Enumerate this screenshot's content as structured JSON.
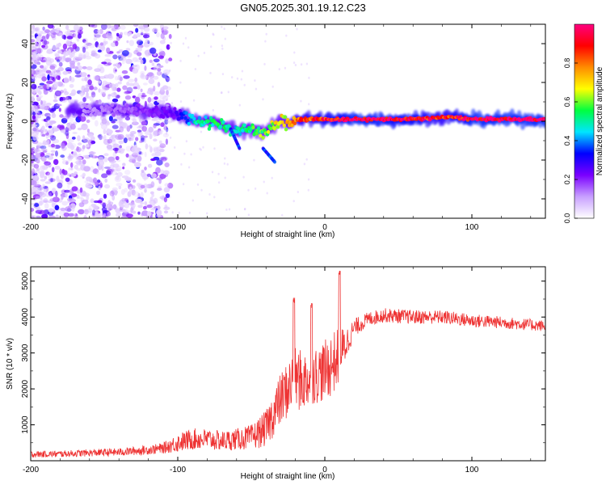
{
  "title": "GN05.2025.301.19.12.C23",
  "colors": {
    "signal": "#ee3333",
    "axis": "#000000",
    "background": "#ffffff"
  },
  "chart_data": [
    {
      "type": "heatmap",
      "name": "spectrogram",
      "xlabel": "Height of straight line (km)",
      "ylabel": "Frequency (Hz)",
      "xlim": [
        -200,
        150
      ],
      "ylim": [
        -50,
        50
      ],
      "xticks": [
        -200,
        -100,
        0,
        100
      ],
      "yticks": [
        -40,
        -20,
        0,
        20,
        40
      ],
      "colorbar": {
        "label": "Normalized spectral amplitude",
        "range": [
          0,
          1
        ],
        "ticks": [
          "0.0",
          "0.2",
          "0.4",
          "0.6",
          "0.8"
        ],
        "tick_values": [
          0.0,
          0.2,
          0.4,
          0.6,
          0.8
        ],
        "colors": [
          "#ffffff",
          "#c8a0ff",
          "#7a00ff",
          "#0000ff",
          "#00e5ff",
          "#00ff40",
          "#ffff00",
          "#ff8c00",
          "#ff0000",
          "#ff0080"
        ]
      },
      "ridge": {
        "x": [
          -160,
          -140,
          -120,
          -100,
          -90,
          -80,
          -70,
          -60,
          -50,
          -40,
          -30,
          -25,
          -20,
          -10,
          0,
          20,
          60,
          80,
          90,
          100,
          150
        ],
        "frequency": [
          6,
          6,
          5,
          4,
          1,
          0,
          -2,
          -5,
          -4,
          -6,
          0,
          -1,
          1,
          1,
          1,
          1,
          1,
          2,
          2,
          1,
          1
        ],
        "amplitude": [
          0.12,
          0.15,
          0.2,
          0.25,
          0.45,
          0.5,
          0.55,
          0.45,
          0.55,
          0.6,
          0.65,
          0.7,
          0.8,
          0.85,
          0.9,
          1.0,
          0.95,
          0.85,
          0.9,
          1.0,
          1.0
        ]
      },
      "annotations": [
        "diffuse noise across -200 to -110 km, all frequencies",
        "tail near -60 km descending to about -14 Hz",
        "branch near -35 km at about -20 Hz"
      ]
    },
    {
      "type": "line",
      "name": "snr",
      "xlabel": "Height of straight line (km)",
      "ylabel": "SNR (10 * v/v)",
      "xlim": [
        -200,
        150
      ],
      "ylim": [
        0,
        5400
      ],
      "xticks": [
        -200,
        -100,
        0,
        100
      ],
      "yticks": [
        1000,
        2000,
        3000,
        4000,
        5000
      ],
      "series": [
        {
          "name": "SNR",
          "x": [
            -200,
            -180,
            -160,
            -140,
            -120,
            -110,
            -100,
            -90,
            -80,
            -70,
            -60,
            -50,
            -40,
            -35,
            -30,
            -25,
            -20,
            -15,
            -10,
            -5,
            0,
            5,
            10,
            15,
            20,
            30,
            40,
            60,
            80,
            100,
            120,
            150
          ],
          "mean": [
            180,
            190,
            220,
            240,
            300,
            350,
            500,
            600,
            600,
            550,
            600,
            650,
            900,
            1300,
            1700,
            2000,
            2300,
            2200,
            2300,
            2400,
            2500,
            2700,
            2900,
            3300,
            3700,
            3950,
            4050,
            4000,
            4000,
            3900,
            3850,
            3750
          ],
          "spread": [
            90,
            90,
            100,
            110,
            130,
            150,
            260,
            300,
            300,
            280,
            300,
            350,
            500,
            650,
            750,
            800,
            900,
            850,
            800,
            800,
            850,
            900,
            800,
            450,
            250,
            200,
            200,
            200,
            190,
            190,
            170,
            160
          ]
        }
      ],
      "spikes": [
        {
          "x": -21,
          "y": 4560
        },
        {
          "x": -9,
          "y": 4380
        },
        {
          "x": 10,
          "y": 5300
        }
      ]
    }
  ]
}
